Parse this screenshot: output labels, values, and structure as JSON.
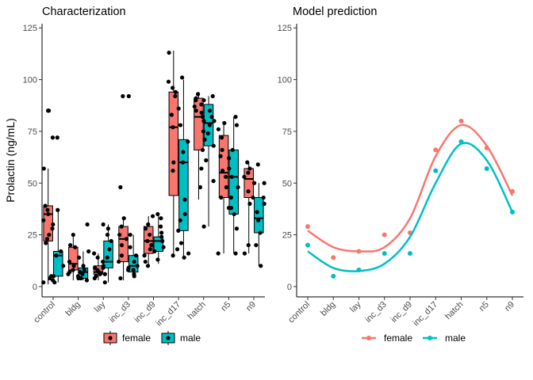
{
  "chart_data": [
    {
      "type": "box",
      "title": "Characterization",
      "ylabel": "Prolactin (ng/mL)",
      "xlabel": "",
      "ylim": [
        -5,
        127
      ],
      "yticks": [
        0,
        25,
        50,
        75,
        100,
        125
      ],
      "categories": [
        "control",
        "bldg",
        "lay",
        "inc_d3",
        "inc_d9",
        "inc_d17",
        "hatch",
        "n5",
        "n9"
      ],
      "grid": false,
      "legend_position": "bottom",
      "colors": {
        "female": "#F8766D",
        "male": "#00BFC4"
      },
      "series": [
        {
          "name": "female",
          "boxes": [
            {
              "min": 1,
              "q1": 22,
              "median": 35,
              "q3": 39,
              "max": 57
            },
            {
              "min": 3,
              "q1": 8,
              "median": 11,
              "q3": 19,
              "max": 25
            },
            {
              "min": 3,
              "q1": 6,
              "median": 7,
              "q3": 10,
              "max": 16
            },
            {
              "min": 3,
              "q1": 12,
              "median": 23,
              "q3": 29,
              "max": 33
            },
            {
              "min": 10,
              "q1": 16,
              "median": 22,
              "q3": 29,
              "max": 34
            },
            {
              "min": 14,
              "q1": 44,
              "median": 77,
              "q3": 94,
              "max": 114
            },
            {
              "min": 42,
              "q1": 66,
              "median": 82,
              "q3": 91,
              "max": 94
            },
            {
              "min": 16,
              "q1": 43,
              "median": 55,
              "q3": 73,
              "max": 79
            },
            {
              "min": 16,
              "q1": 43,
              "median": 52,
              "q3": 57,
              "max": 60
            }
          ],
          "points": [
            [
              1,
              85
            ],
            [
              1,
              85
            ],
            [
              1,
              57
            ],
            [
              1,
              39
            ],
            [
              1,
              37
            ],
            [
              1,
              35
            ],
            [
              1,
              32
            ],
            [
              1,
              28
            ],
            [
              1,
              25
            ],
            [
              1,
              23
            ],
            [
              1,
              21
            ],
            [
              1,
              5
            ],
            [
              1,
              4
            ],
            [
              1,
              2
            ],
            [
              2,
              25
            ],
            [
              2,
              20
            ],
            [
              2,
              19
            ],
            [
              2,
              12
            ],
            [
              2,
              10
            ],
            [
              2,
              8
            ],
            [
              2,
              7
            ],
            [
              2,
              6
            ],
            [
              2,
              5
            ],
            [
              2,
              4
            ],
            [
              3,
              16
            ],
            [
              3,
              14
            ],
            [
              3,
              10
            ],
            [
              3,
              9
            ],
            [
              3,
              8
            ],
            [
              3,
              7
            ],
            [
              3,
              6
            ],
            [
              3,
              5
            ],
            [
              3,
              4
            ],
            [
              4,
              92
            ],
            [
              4,
              92
            ],
            [
              4,
              48
            ],
            [
              4,
              33
            ],
            [
              4,
              29
            ],
            [
              4,
              25
            ],
            [
              4,
              23
            ],
            [
              4,
              20
            ],
            [
              4,
              15
            ],
            [
              4,
              12
            ],
            [
              4,
              8
            ],
            [
              4,
              4
            ],
            [
              5,
              34
            ],
            [
              5,
              30
            ],
            [
              5,
              28
            ],
            [
              5,
              25
            ],
            [
              5,
              22
            ],
            [
              5,
              20
            ],
            [
              5,
              18
            ],
            [
              5,
              15
            ],
            [
              5,
              12
            ],
            [
              5,
              10
            ],
            [
              6,
              113
            ],
            [
              6,
              99
            ],
            [
              6,
              96
            ],
            [
              6,
              94
            ],
            [
              6,
              92
            ],
            [
              6,
              86
            ],
            [
              6,
              83
            ],
            [
              6,
              77
            ],
            [
              6,
              60
            ],
            [
              6,
              56
            ],
            [
              6,
              18
            ],
            [
              6,
              15
            ],
            [
              7,
              93
            ],
            [
              7,
              91
            ],
            [
              7,
              90
            ],
            [
              7,
              88
            ],
            [
              7,
              87
            ],
            [
              7,
              85
            ],
            [
              7,
              84
            ],
            [
              7,
              82
            ],
            [
              7,
              80
            ],
            [
              7,
              75
            ],
            [
              7,
              66
            ],
            [
              7,
              57
            ],
            [
              7,
              48
            ],
            [
              8,
              79
            ],
            [
              8,
              76
            ],
            [
              8,
              72
            ],
            [
              8,
              66
            ],
            [
              8,
              63
            ],
            [
              8,
              56
            ],
            [
              8,
              53
            ],
            [
              8,
              48
            ],
            [
              8,
              43
            ],
            [
              8,
              38
            ],
            [
              8,
              16
            ],
            [
              9,
              60
            ],
            [
              9,
              57
            ],
            [
              9,
              55
            ],
            [
              9,
              53
            ],
            [
              9,
              50
            ],
            [
              9,
              46
            ],
            [
              9,
              43
            ],
            [
              9,
              40
            ],
            [
              9,
              20
            ],
            [
              9,
              16
            ]
          ]
        },
        {
          "name": "male",
          "boxes": [
            {
              "min": 2,
              "q1": 5,
              "median": 15,
              "q3": 17,
              "max": 37
            },
            {
              "min": 3,
              "q1": 4,
              "median": 7,
              "q3": 9,
              "max": 17
            },
            {
              "min": 2,
              "q1": 9,
              "median": 12,
              "q3": 22,
              "max": 30
            },
            {
              "min": 5,
              "q1": 7,
              "median": 10,
              "q3": 15,
              "max": 25
            },
            {
              "min": 11,
              "q1": 17,
              "median": 22,
              "q3": 24,
              "max": 35
            },
            {
              "min": 14,
              "q1": 27,
              "median": 60,
              "q3": 71,
              "max": 100
            },
            {
              "min": 29,
              "q1": 68,
              "median": 79,
              "q3": 88,
              "max": 92
            },
            {
              "min": 16,
              "q1": 35,
              "median": 53,
              "q3": 66,
              "max": 82
            },
            {
              "min": 10,
              "q1": 26,
              "median": 33,
              "q3": 43,
              "max": 50
            }
          ],
          "points": [
            [
              1,
              72
            ],
            [
              1,
              72
            ],
            [
              1,
              37
            ],
            [
              1,
              30
            ],
            [
              1,
              17
            ],
            [
              1,
              15
            ],
            [
              1,
              10
            ],
            [
              1,
              5
            ],
            [
              1,
              3
            ],
            [
              1,
              2
            ],
            [
              2,
              30
            ],
            [
              2,
              17
            ],
            [
              2,
              14
            ],
            [
              2,
              10
            ],
            [
              2,
              8
            ],
            [
              2,
              7
            ],
            [
              2,
              6
            ],
            [
              2,
              4
            ],
            [
              2,
              3
            ],
            [
              3,
              30
            ],
            [
              3,
              28
            ],
            [
              3,
              25
            ],
            [
              3,
              22
            ],
            [
              3,
              18
            ],
            [
              3,
              14
            ],
            [
              3,
              12
            ],
            [
              3,
              9
            ],
            [
              3,
              6
            ],
            [
              3,
              2
            ],
            [
              4,
              25
            ],
            [
              4,
              19
            ],
            [
              4,
              15
            ],
            [
              4,
              12
            ],
            [
              4,
              10
            ],
            [
              4,
              9
            ],
            [
              4,
              8
            ],
            [
              4,
              6
            ],
            [
              4,
              5
            ],
            [
              5,
              35
            ],
            [
              5,
              33
            ],
            [
              5,
              29
            ],
            [
              5,
              26
            ],
            [
              5,
              24
            ],
            [
              5,
              22
            ],
            [
              5,
              19
            ],
            [
              5,
              17
            ],
            [
              5,
              13
            ],
            [
              6,
              101
            ],
            [
              6,
              78
            ],
            [
              6,
              70
            ],
            [
              6,
              65
            ],
            [
              6,
              60
            ],
            [
              6,
              42
            ],
            [
              6,
              35
            ],
            [
              6,
              32
            ],
            [
              6,
              27
            ],
            [
              6,
              21
            ],
            [
              6,
              16
            ],
            [
              6,
              14
            ],
            [
              7,
              92
            ],
            [
              7,
              90
            ],
            [
              7,
              85
            ],
            [
              7,
              82
            ],
            [
              7,
              80
            ],
            [
              7,
              78
            ],
            [
              7,
              74
            ],
            [
              7,
              71
            ],
            [
              7,
              68
            ],
            [
              7,
              61
            ],
            [
              7,
              51
            ],
            [
              7,
              29
            ],
            [
              8,
              82
            ],
            [
              8,
              78
            ],
            [
              8,
              66
            ],
            [
              8,
              62
            ],
            [
              8,
              57
            ],
            [
              8,
              53
            ],
            [
              8,
              48
            ],
            [
              8,
              43
            ],
            [
              8,
              38
            ],
            [
              8,
              35
            ],
            [
              8,
              28
            ],
            [
              8,
              16
            ],
            [
              9,
              59
            ],
            [
              9,
              50
            ],
            [
              9,
              43
            ],
            [
              9,
              40
            ],
            [
              9,
              36
            ],
            [
              9,
              32
            ],
            [
              9,
              26
            ],
            [
              9,
              20
            ],
            [
              9,
              10
            ]
          ]
        }
      ]
    },
    {
      "type": "line",
      "title": "Model prediction",
      "ylabel": "",
      "xlabel": "",
      "ylim": [
        -5,
        127
      ],
      "yticks": [
        0,
        25,
        50,
        75,
        100,
        125
      ],
      "categories": [
        "control",
        "bldg",
        "lay",
        "inc_d3",
        "inc_d9",
        "inc_d17",
        "hatch",
        "n5",
        "n9"
      ],
      "grid": false,
      "legend_position": "bottom",
      "colors": {
        "female": "#F8766D",
        "male": "#00BFC4"
      },
      "series": [
        {
          "name": "female",
          "points": [
            29,
            14,
            17,
            25,
            26,
            66,
            80,
            67,
            46
          ],
          "curve": [
            27,
            19,
            17,
            19,
            33,
            63,
            78,
            68,
            44
          ]
        },
        {
          "name": "male",
          "points": [
            20,
            5,
            8,
            16,
            16,
            56,
            70,
            57,
            36
          ],
          "curve": [
            17,
            9,
            7.5,
            11,
            24,
            50,
            69,
            61,
            36
          ]
        }
      ]
    }
  ]
}
